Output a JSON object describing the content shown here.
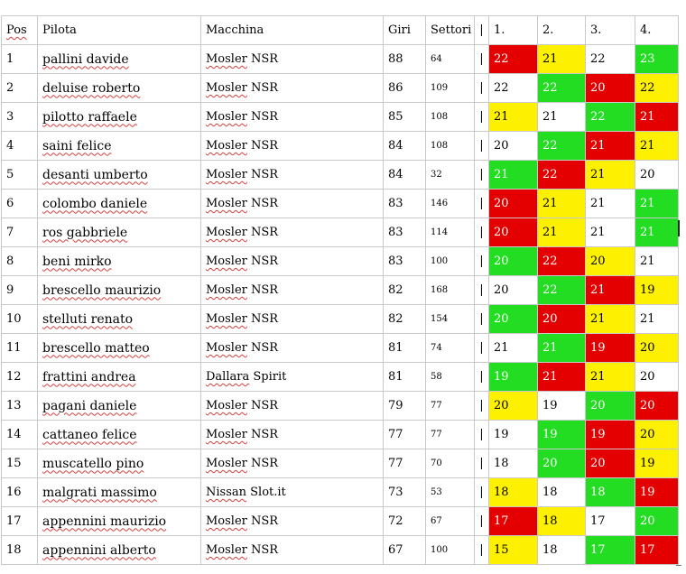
{
  "headers": {
    "pos": "Pos",
    "pilota": "Pilota",
    "macchina": "Macchina",
    "giri": "Giri",
    "settori": "Settori",
    "sep": "|",
    "lap1": "1.",
    "lap2": "2.",
    "lap3": "3.",
    "lap4": "4."
  },
  "color_map": {
    "red": "#e40000",
    "yellow": "#fdf000",
    "green": "#22dd22",
    "white": "#ffffff"
  },
  "rows": [
    {
      "pos": "1",
      "pilota": "pallini davide",
      "macchina": "Mosler NSR",
      "giri": "88",
      "settori": "64",
      "sep": "|",
      "laps": [
        {
          "v": "22",
          "c": "red"
        },
        {
          "v": "21",
          "c": "yellow"
        },
        {
          "v": "22",
          "c": "white"
        },
        {
          "v": "23",
          "c": "green"
        }
      ]
    },
    {
      "pos": "2",
      "pilota": "deluise roberto",
      "macchina": "Mosler NSR",
      "giri": "86",
      "settori": "109",
      "sep": "|",
      "laps": [
        {
          "v": "22",
          "c": "white"
        },
        {
          "v": "22",
          "c": "green"
        },
        {
          "v": "20",
          "c": "red"
        },
        {
          "v": "22",
          "c": "yellow"
        }
      ]
    },
    {
      "pos": "3",
      "pilota": "pilotto raffaele",
      "macchina": "Mosler NSR",
      "giri": "85",
      "settori": "108",
      "sep": "|",
      "laps": [
        {
          "v": "21",
          "c": "yellow"
        },
        {
          "v": "21",
          "c": "white"
        },
        {
          "v": "22",
          "c": "green"
        },
        {
          "v": "21",
          "c": "red"
        }
      ]
    },
    {
      "pos": "4",
      "pilota": "saini felice",
      "macchina": "Mosler NSR",
      "giri": "84",
      "settori": "108",
      "sep": "|",
      "laps": [
        {
          "v": "20",
          "c": "white"
        },
        {
          "v": "22",
          "c": "green"
        },
        {
          "v": "21",
          "c": "red"
        },
        {
          "v": "21",
          "c": "yellow"
        }
      ]
    },
    {
      "pos": "5",
      "pilota": "desanti umberto",
      "macchina": "Mosler NSR",
      "giri": "84",
      "settori": "32",
      "sep": "|",
      "laps": [
        {
          "v": "21",
          "c": "green"
        },
        {
          "v": "22",
          "c": "red"
        },
        {
          "v": "21",
          "c": "yellow"
        },
        {
          "v": "20",
          "c": "white"
        }
      ]
    },
    {
      "pos": "6",
      "pilota": "colombo daniele",
      "macchina": "Mosler NSR",
      "giri": "83",
      "settori": "146",
      "sep": "|",
      "laps": [
        {
          "v": "20",
          "c": "red"
        },
        {
          "v": "21",
          "c": "yellow"
        },
        {
          "v": "21",
          "c": "white"
        },
        {
          "v": "21",
          "c": "green"
        }
      ]
    },
    {
      "pos": "7",
      "pilota": "ros gabbriele",
      "macchina": "Mosler NSR",
      "giri": "83",
      "settori": "114",
      "sep": "|",
      "laps": [
        {
          "v": "20",
          "c": "red"
        },
        {
          "v": "21",
          "c": "yellow"
        },
        {
          "v": "21",
          "c": "white"
        },
        {
          "v": "21",
          "c": "green"
        }
      ]
    },
    {
      "pos": "8",
      "pilota": "beni mirko",
      "macchina": "Mosler NSR",
      "giri": "83",
      "settori": "100",
      "sep": "|",
      "laps": [
        {
          "v": "20",
          "c": "green"
        },
        {
          "v": "22",
          "c": "red"
        },
        {
          "v": "20",
          "c": "yellow"
        },
        {
          "v": "21",
          "c": "white"
        }
      ]
    },
    {
      "pos": "9",
      "pilota": "brescello maurizio",
      "macchina": "Mosler NSR",
      "giri": "82",
      "settori": "168",
      "sep": "|",
      "laps": [
        {
          "v": "20",
          "c": "white"
        },
        {
          "v": "22",
          "c": "green"
        },
        {
          "v": "21",
          "c": "red"
        },
        {
          "v": "19",
          "c": "yellow"
        }
      ]
    },
    {
      "pos": "10",
      "pilota": "stelluti renato",
      "macchina": "Mosler NSR",
      "giri": "82",
      "settori": "154",
      "sep": "|",
      "laps": [
        {
          "v": "20",
          "c": "green"
        },
        {
          "v": "20",
          "c": "red"
        },
        {
          "v": "21",
          "c": "yellow"
        },
        {
          "v": "21",
          "c": "white"
        }
      ]
    },
    {
      "pos": "11",
      "pilota": "brescello matteo",
      "macchina": "Mosler NSR",
      "giri": "81",
      "settori": "74",
      "sep": "|",
      "laps": [
        {
          "v": "21",
          "c": "white"
        },
        {
          "v": "21",
          "c": "green"
        },
        {
          "v": "19",
          "c": "red"
        },
        {
          "v": "20",
          "c": "yellow"
        }
      ]
    },
    {
      "pos": "12",
      "pilota": "frattini andrea",
      "macchina": "Dallara Spirit",
      "giri": "81",
      "settori": "58",
      "sep": "|",
      "laps": [
        {
          "v": "19",
          "c": "green"
        },
        {
          "v": "21",
          "c": "red"
        },
        {
          "v": "21",
          "c": "yellow"
        },
        {
          "v": "20",
          "c": "white"
        }
      ]
    },
    {
      "pos": "13",
      "pilota": "pagani daniele",
      "macchina": "Mosler NSR",
      "giri": "79",
      "settori": "77",
      "sep": "|",
      "laps": [
        {
          "v": "20",
          "c": "yellow"
        },
        {
          "v": "19",
          "c": "white"
        },
        {
          "v": "20",
          "c": "green"
        },
        {
          "v": "20",
          "c": "red"
        }
      ]
    },
    {
      "pos": "14",
      "pilota": "cattaneo felice",
      "macchina": "Mosler NSR",
      "giri": "77",
      "settori": "77",
      "sep": "|",
      "laps": [
        {
          "v": "19",
          "c": "white"
        },
        {
          "v": "19",
          "c": "green"
        },
        {
          "v": "19",
          "c": "red"
        },
        {
          "v": "20",
          "c": "yellow"
        }
      ]
    },
    {
      "pos": "15",
      "pilota": "muscatello pino",
      "macchina": "Mosler NSR",
      "giri": "77",
      "settori": "70",
      "sep": "|",
      "laps": [
        {
          "v": "18",
          "c": "white"
        },
        {
          "v": "20",
          "c": "green"
        },
        {
          "v": "20",
          "c": "red"
        },
        {
          "v": "19",
          "c": "yellow"
        }
      ]
    },
    {
      "pos": "16",
      "pilota": "malgrati massimo",
      "macchina": "Nissan Slot.it",
      "giri": "73",
      "settori": "53",
      "sep": "|",
      "laps": [
        {
          "v": "18",
          "c": "yellow"
        },
        {
          "v": "18",
          "c": "white"
        },
        {
          "v": "18",
          "c": "green"
        },
        {
          "v": "19",
          "c": "red"
        }
      ]
    },
    {
      "pos": "17",
      "pilota": "appennini maurizio",
      "macchina": "Mosler NSR",
      "giri": "72",
      "settori": "67",
      "sep": "|",
      "laps": [
        {
          "v": "17",
          "c": "red"
        },
        {
          "v": "18",
          "c": "yellow"
        },
        {
          "v": "17",
          "c": "white"
        },
        {
          "v": "20",
          "c": "green"
        }
      ]
    },
    {
      "pos": "18",
      "pilota": "appennini alberto",
      "macchina": "Mosler NSR",
      "giri": "67",
      "settori": "100",
      "sep": "|",
      "laps": [
        {
          "v": "15",
          "c": "yellow"
        },
        {
          "v": "18",
          "c": "white"
        },
        {
          "v": "17",
          "c": "green"
        },
        {
          "v": "17",
          "c": "red"
        }
      ]
    }
  ]
}
